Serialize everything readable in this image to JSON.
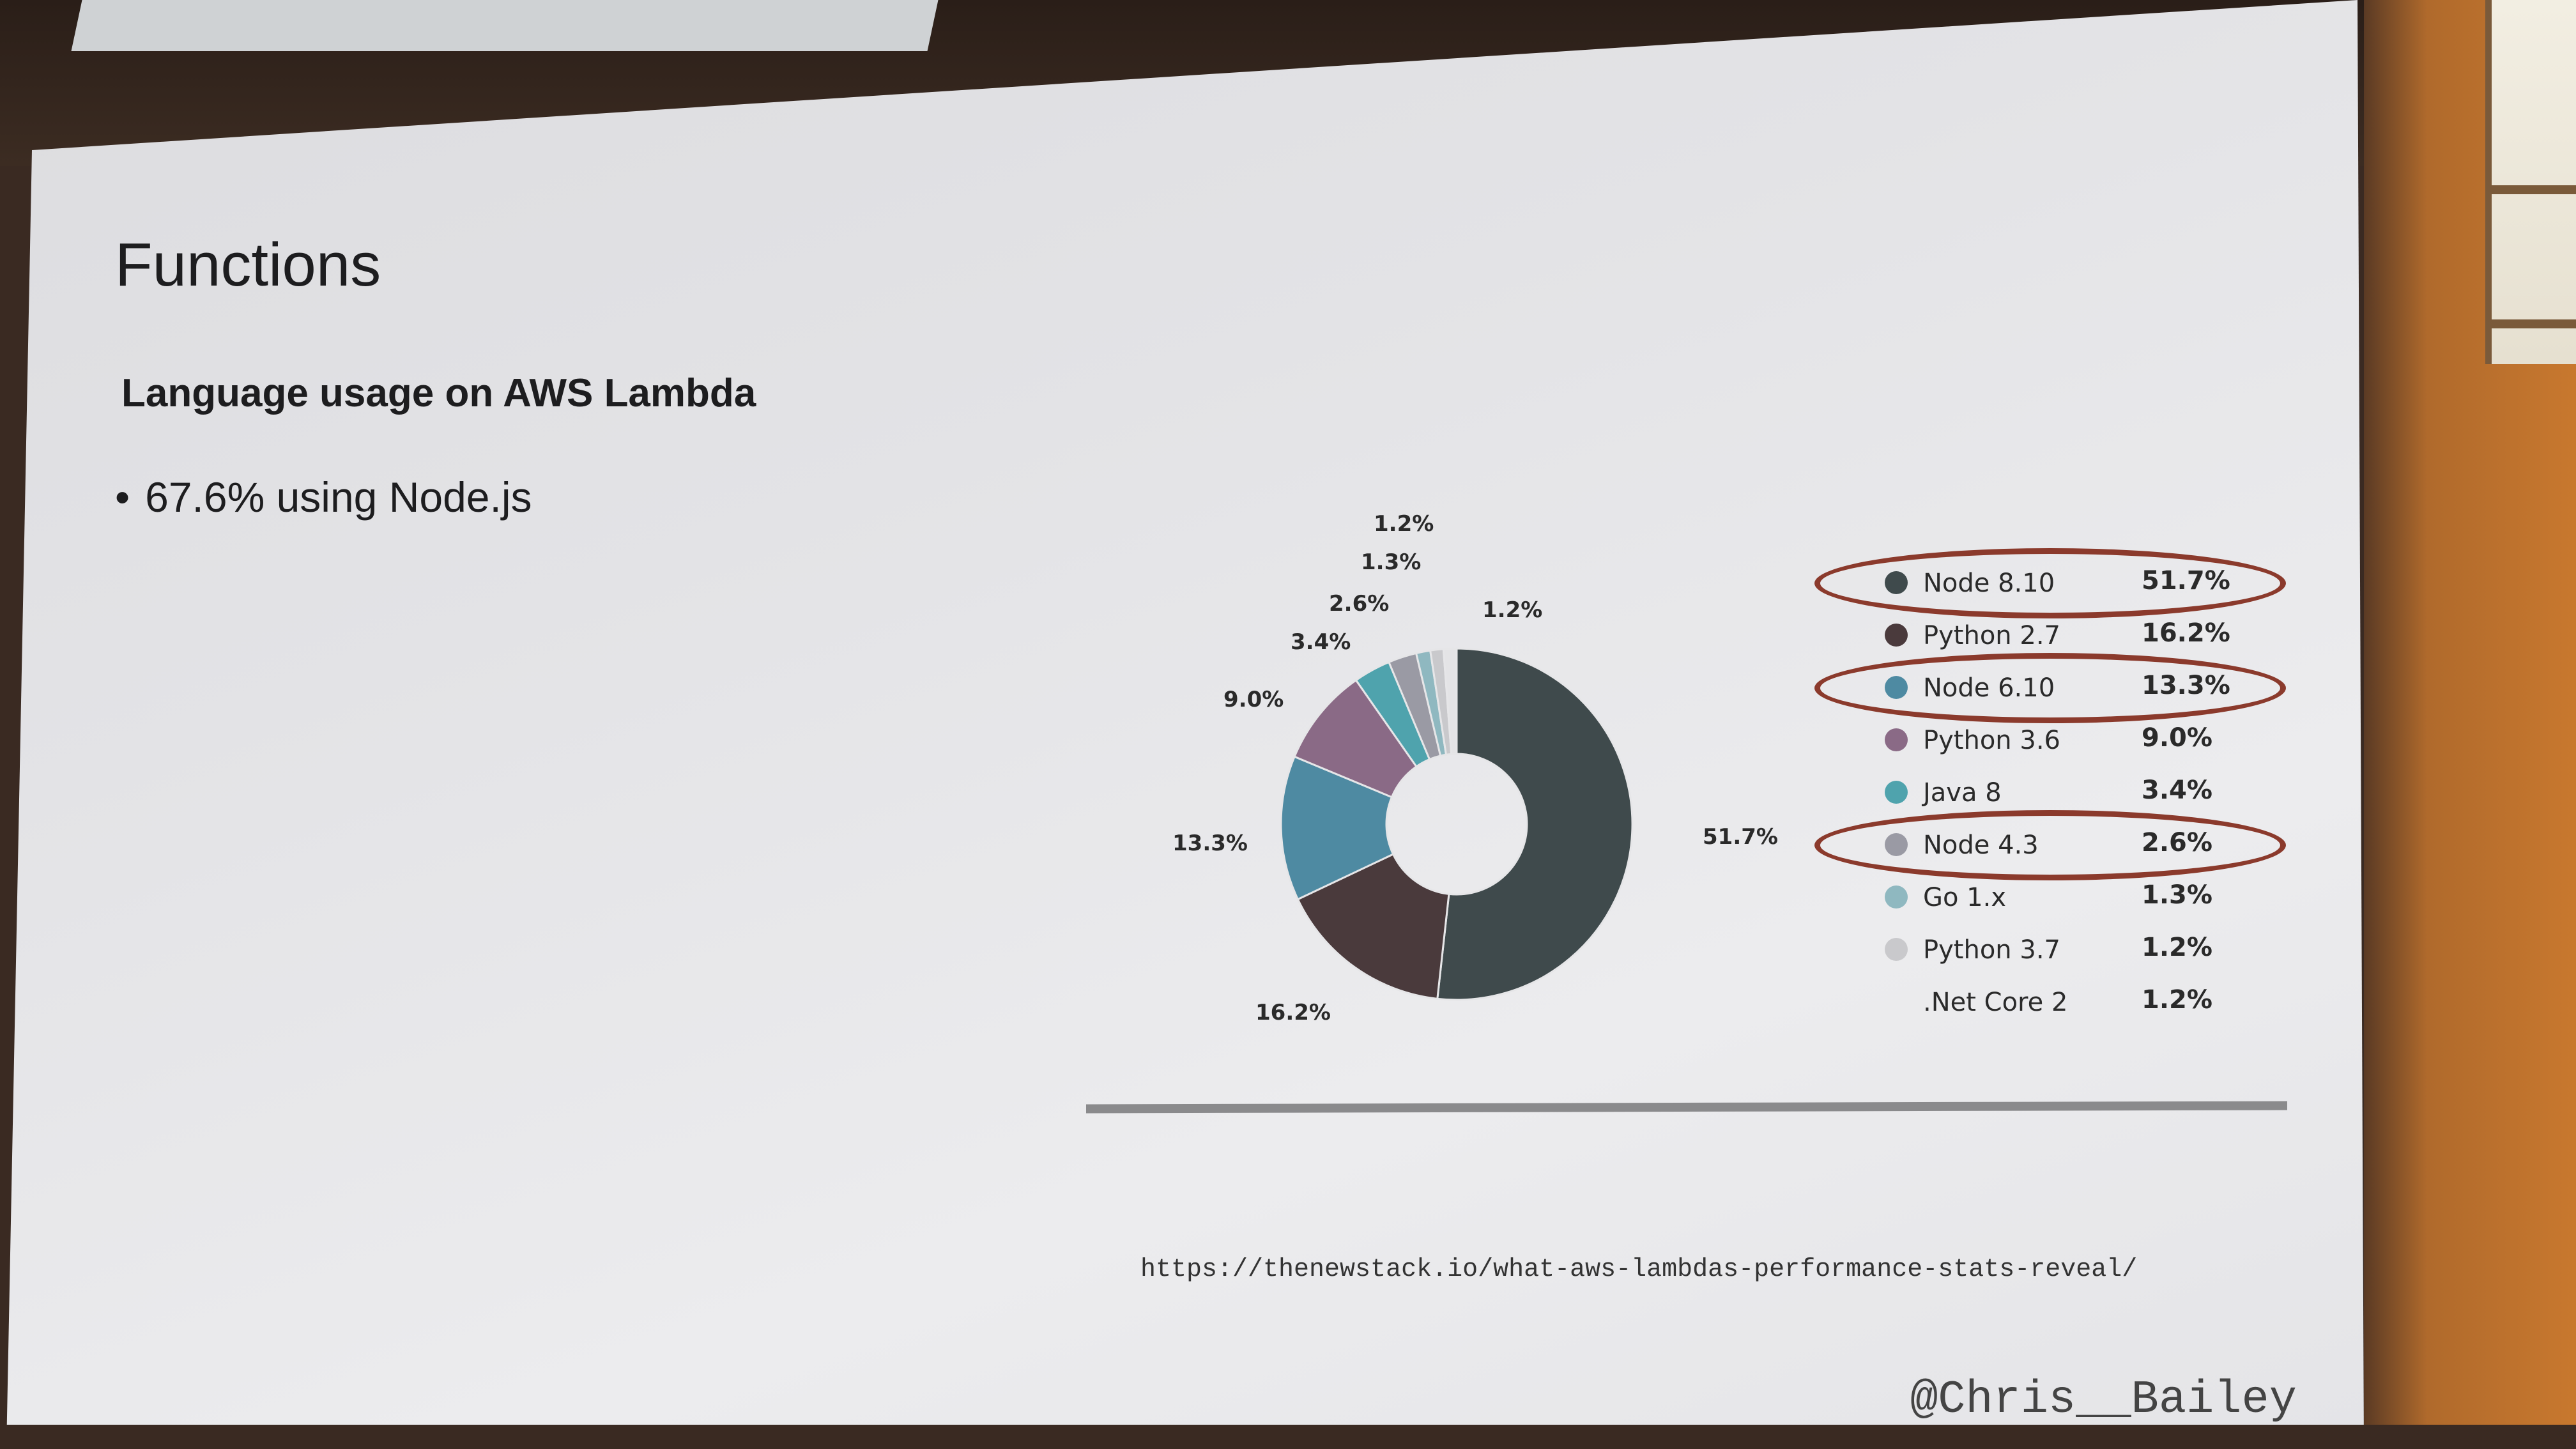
{
  "slide": {
    "title": "Functions",
    "subtitle": "Language usage on AWS Lambda",
    "bullet": "67.6% using Node.js",
    "source_url": "https://thenewstack.io/what-aws-lambdas-performance-stats-reveal/",
    "handle": "@Chris__Bailey"
  },
  "chart_data": {
    "type": "pie",
    "categories": [
      "Node 8.10",
      "Python 2.7",
      "Node 6.10",
      "Python 3.6",
      "Java 8",
      "Node 4.3",
      "Go 1.x",
      "Python 3.7",
      ".Net Core 2"
    ],
    "values": [
      51.7,
      16.2,
      13.3,
      9.0,
      3.4,
      2.6,
      1.3,
      1.2,
      1.2
    ],
    "data_labels": [
      "51.7%",
      "16.2%",
      "13.3%",
      "9.0%",
      "3.4%",
      "2.6%",
      "1.3%",
      "1.2%",
      "1.2%"
    ],
    "colors": [
      "#3f4a4c",
      "#4a3a3c",
      "#4e8aa2",
      "#8a6a86",
      "#4fa3ad",
      "#9a9aa4",
      "#8fb8c0",
      "#c9c9cc",
      "#e4e4e6"
    ],
    "highlighted": [
      "Node 8.10",
      "Node 6.10",
      "Node 4.3"
    ],
    "legend_position": "right"
  }
}
